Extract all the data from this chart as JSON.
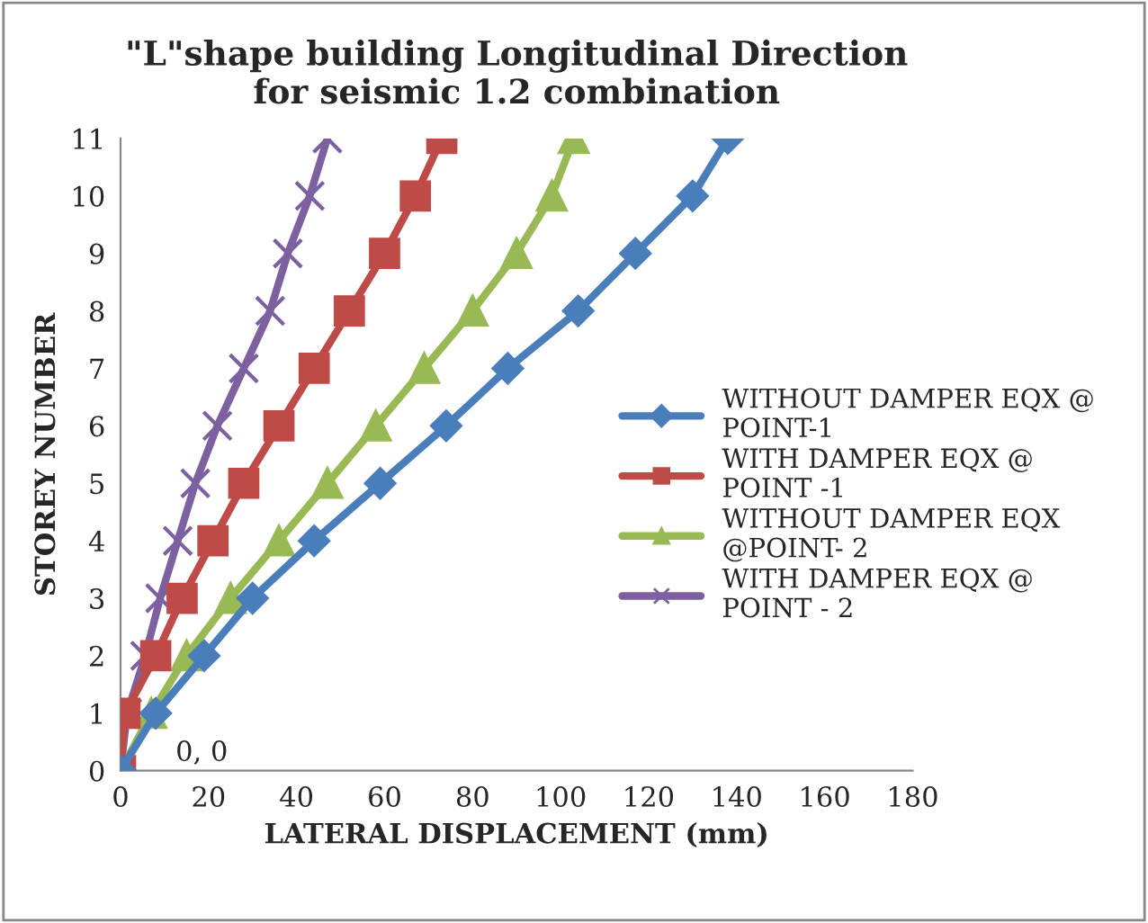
{
  "chart_data": {
    "type": "line",
    "title": "\"L\"shape building Longitudinal Direction\nfor seismic 1.2 combination",
    "xlabel": "LATERAL DISPLACEMENT (mm)",
    "ylabel": "STOREY NUMBER",
    "xlim": [
      0,
      180
    ],
    "xticks": [
      0,
      20,
      40,
      60,
      80,
      100,
      120,
      140,
      160,
      180
    ],
    "ylim": [
      0,
      11
    ],
    "yticks": [
      0,
      1,
      2,
      3,
      4,
      5,
      6,
      7,
      8,
      9,
      10,
      11
    ],
    "grid": false,
    "legend": "right",
    "annotations": [
      {
        "text": "0, 0",
        "x": 0,
        "y": 0
      }
    ],
    "series": [
      {
        "name": "WITHOUT DAMPER EQX @\nPOINT-1",
        "color": "#4a7ebb",
        "marker": "diamond",
        "x": [
          0,
          8,
          19,
          30,
          44,
          59,
          74,
          88,
          104,
          117,
          130,
          138
        ],
        "values": [
          0,
          1,
          2,
          3,
          4,
          5,
          6,
          7,
          8,
          9,
          10,
          11
        ]
      },
      {
        "name": "WITH DAMPER EQX @\nPOINT -1",
        "color": "#be4b48",
        "marker": "square",
        "x": [
          0,
          1,
          8,
          14,
          21,
          28,
          36,
          44,
          52,
          60,
          67,
          73
        ],
        "values": [
          0,
          1,
          2,
          3,
          4,
          5,
          6,
          7,
          8,
          9,
          10,
          11
        ]
      },
      {
        "name": "WITHOUT DAMPER EQX\n@POINT- 2",
        "color": "#98b954",
        "marker": "triangle",
        "x": [
          0,
          7,
          15,
          25,
          36,
          47,
          58,
          69,
          80,
          90,
          98,
          103
        ],
        "values": [
          0,
          1,
          2,
          3,
          4,
          5,
          6,
          7,
          8,
          9,
          10,
          11
        ]
      },
      {
        "name": "WITH DAMPER EQX @\nPOINT - 2",
        "color": "#7d60a0",
        "marker": "cross",
        "x": [
          0,
          1.5,
          5.6,
          9,
          13,
          17,
          22,
          28,
          34,
          38,
          43,
          47
        ],
        "values": [
          0,
          1,
          2,
          3,
          4,
          5,
          6,
          7,
          8,
          9,
          10,
          11
        ]
      }
    ]
  }
}
